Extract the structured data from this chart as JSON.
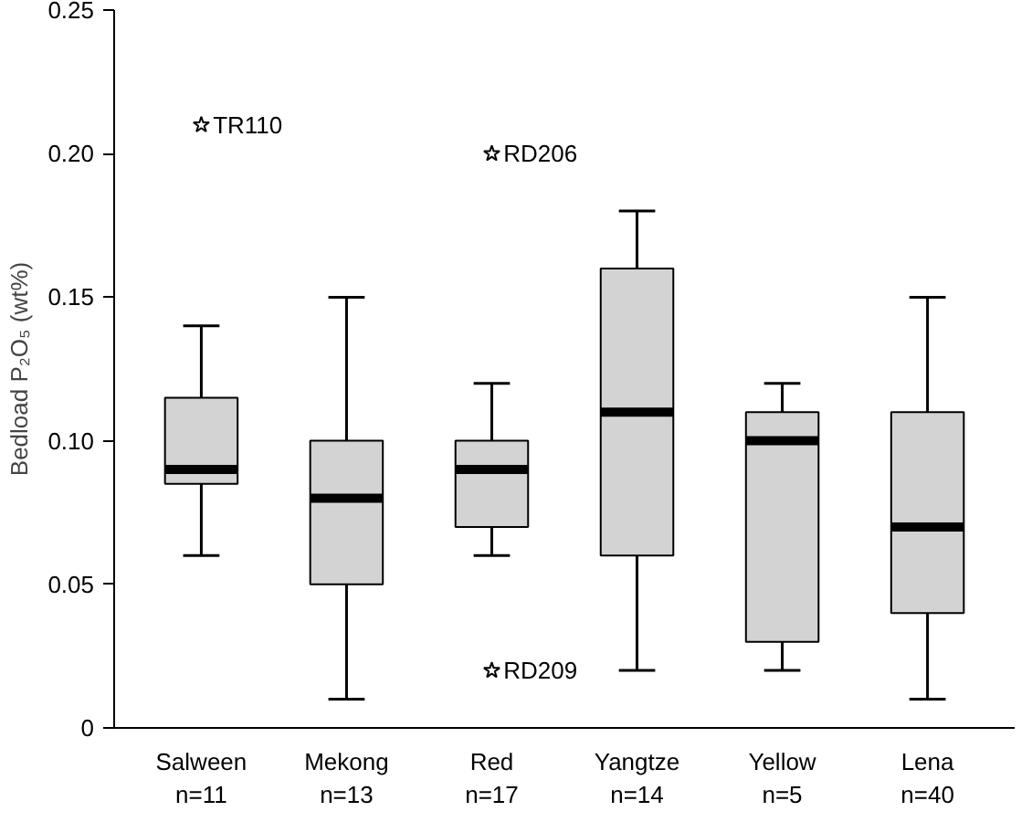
{
  "chart_data": {
    "type": "box",
    "ylabel": "Bedload P₂O₅ (wt%)",
    "categories": [
      "Salween\nn=11",
      "Mekong\nn=13",
      "Red\nn=17",
      "Yangtze\nn=14",
      "Yellow\nn=5",
      "Lena\nn=40"
    ],
    "boxes": [
      {
        "low": 0.06,
        "q1": 0.085,
        "median": 0.09,
        "q3": 0.115,
        "high": 0.14,
        "outliers": [
          0.21
        ]
      },
      {
        "low": 0.01,
        "q1": 0.05,
        "median": 0.08,
        "q3": 0.1,
        "high": 0.15
      },
      {
        "low": 0.06,
        "q1": 0.07,
        "median": 0.09,
        "q3": 0.1,
        "high": 0.12,
        "outliers": [
          0.2,
          0.02
        ]
      },
      {
        "low": 0.02,
        "q1": 0.06,
        "median": 0.11,
        "q3": 0.16,
        "high": 0.18
      },
      {
        "low": 0.02,
        "q1": 0.03,
        "median": 0.1,
        "q3": 0.11,
        "high": 0.12
      },
      {
        "low": 0.01,
        "q1": 0.04,
        "median": 0.07,
        "q3": 0.11,
        "high": 0.15
      }
    ],
    "color": "#d3d3d3",
    "marker": "star",
    "grid": false,
    "ylim": [
      0,
      0.25
    ],
    "yticks": [
      0,
      {
        "value": 0.05,
        "label": "0.05"
      },
      {
        "value": 0.1,
        "label": "0.10"
      },
      {
        "value": 0.15,
        "label": "0.15"
      },
      {
        "value": 0.2,
        "label": "0.20"
      },
      {
        "value": 0.25,
        "label": "0.25"
      }
    ],
    "annotations": [
      "TR110",
      "RD206",
      "RD209"
    ]
  }
}
